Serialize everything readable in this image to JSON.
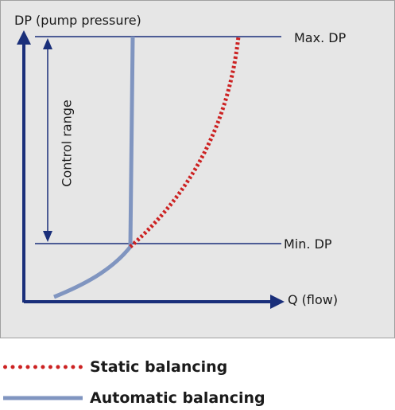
{
  "diagram": {
    "y_axis_label": "DP (pump pressure)",
    "x_axis_label": "Q (flow)",
    "max_label": "Max. DP",
    "min_label": "Min. DP",
    "range_label": "Control range",
    "colors": {
      "axis": "#1a2f7a",
      "static_curve": "#cc2222",
      "automatic_curve": "#8095c0",
      "panel_bg": "#e6e6e6"
    }
  },
  "legend": {
    "static_label": "Static balancing",
    "automatic_label": "Automatic balancing"
  }
}
